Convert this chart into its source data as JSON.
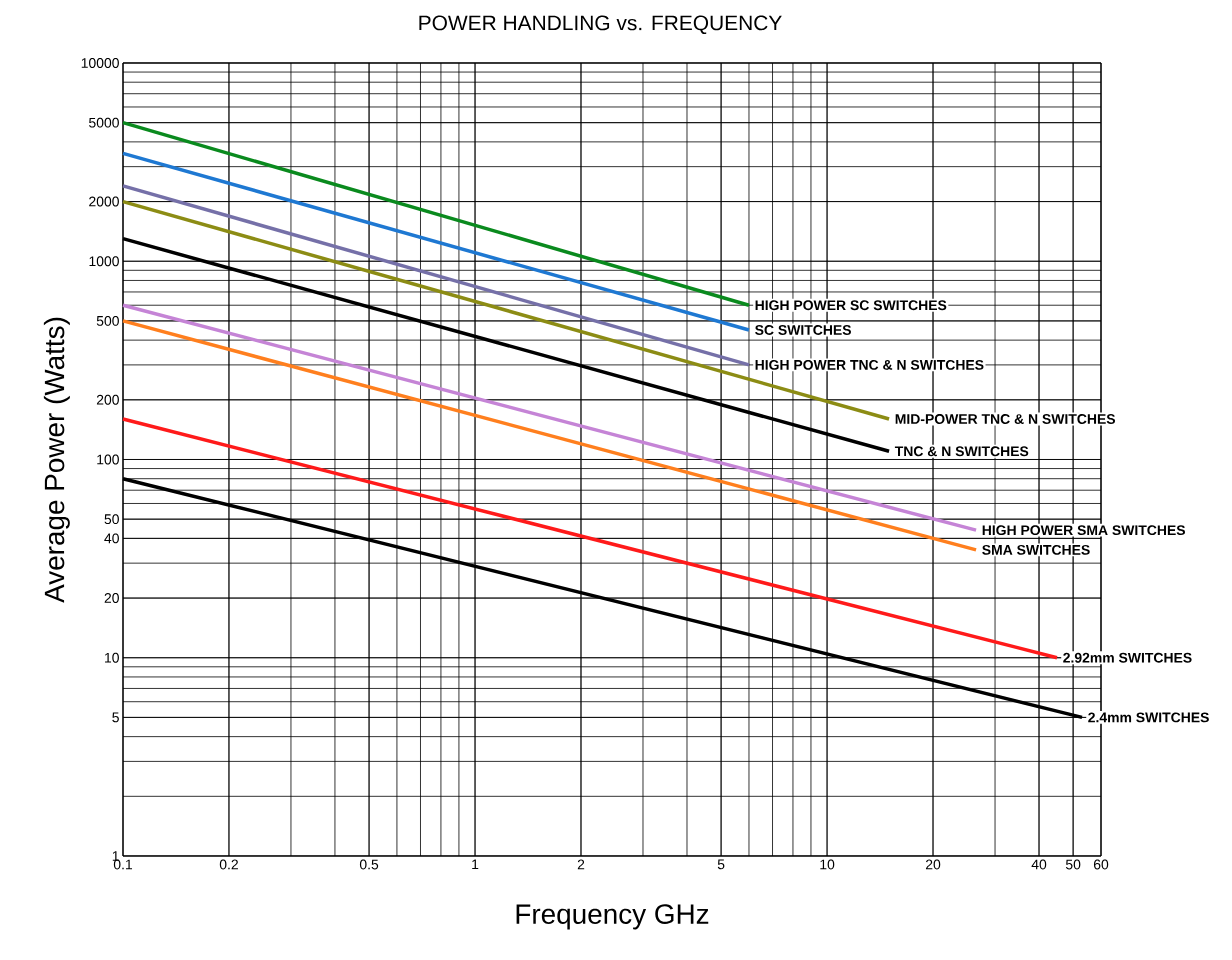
{
  "chart_data": {
    "type": "line",
    "title": "POWER HANDLING vs. FREQUENCY",
    "xlabel": "Frequency GHz",
    "ylabel": "Average Power (Watts)",
    "log": "xy",
    "grid": true,
    "xlim": [
      0.1,
      60
    ],
    "ylim": [
      1,
      10000
    ],
    "xticks": [
      0.1,
      0.2,
      0.5,
      1,
      2,
      5,
      10,
      20,
      40,
      50,
      60
    ],
    "yticks": [
      1,
      5,
      10,
      20,
      40,
      50,
      100,
      200,
      500,
      1000,
      2000,
      5000,
      10000
    ],
    "series": [
      {
        "name": "HIGH POWER SC SWITCHES",
        "color": "#0a8a1e",
        "x": [
          0.1,
          6
        ],
        "values": [
          5000,
          600
        ]
      },
      {
        "name": "SC SWITCHES",
        "color": "#1e78d2",
        "x": [
          0.1,
          6
        ],
        "values": [
          3500,
          450
        ]
      },
      {
        "name": "HIGH POWER TNC & N SWITCHES",
        "color": "#7570a8",
        "x": [
          0.1,
          6
        ],
        "values": [
          2400,
          300
        ]
      },
      {
        "name": "MID-POWER TNC & N SWITCHES",
        "color": "#8c8c14",
        "x": [
          0.1,
          15
        ],
        "values": [
          2000,
          160
        ]
      },
      {
        "name": "TNC & N SWITCHES",
        "color": "#000000",
        "x": [
          0.1,
          15
        ],
        "values": [
          1300,
          110
        ]
      },
      {
        "name": "HIGH POWER SMA SWITCHES",
        "color": "#c584d6",
        "x": [
          0.1,
          26.5
        ],
        "values": [
          600,
          44
        ]
      },
      {
        "name": "SMA SWITCHES",
        "color": "#ff7f1e",
        "x": [
          0.1,
          26.5
        ],
        "values": [
          500,
          35
        ]
      },
      {
        "name": "2.92mm SWITCHES",
        "color": "#ff1a1a",
        "x": [
          0.1,
          45
        ],
        "values": [
          160,
          10
        ]
      },
      {
        "name": "2.4mm SWITCHES",
        "color": "#000000",
        "x": [
          0.1,
          53
        ],
        "values": [
          80,
          5
        ]
      }
    ]
  }
}
